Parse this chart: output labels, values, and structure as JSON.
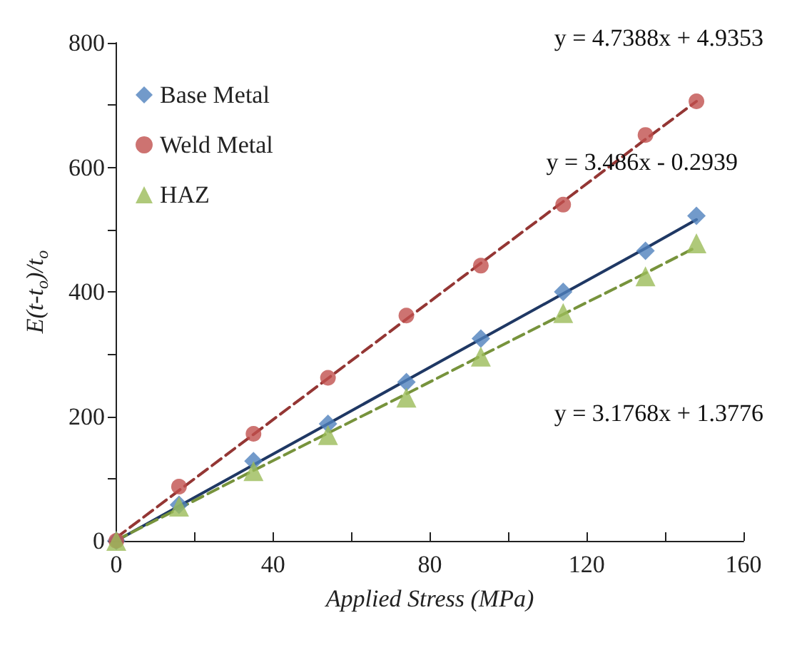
{
  "chart_data": {
    "type": "scatter",
    "xlabel": "Applied Stress (MPa)",
    "ylabel": "E(t-t$_{o}$)/t$_{o}$",
    "x": [
      0,
      16,
      35,
      54,
      74,
      93,
      114,
      135,
      148
    ],
    "series": [
      {
        "name": "Base Metal",
        "color": "#4f81bd",
        "marker": "diamond",
        "values": [
          0,
          58,
          128,
          188,
          255,
          325,
          400,
          466,
          522
        ]
      },
      {
        "name": "Weld Metal",
        "color": "#c0504d",
        "marker": "circle",
        "values": [
          0,
          87,
          172,
          262,
          362,
          442,
          540,
          652,
          706
        ]
      },
      {
        "name": "HAZ",
        "color": "#9bbb59",
        "marker": "triangle",
        "values": [
          0,
          55,
          112,
          170,
          230,
          296,
          366,
          425,
          478
        ]
      },
      {
        "type": "line",
        "color": "#943634",
        "line_style": "dashed",
        "marker": "none",
        "values": [
          5,
          81,
          171,
          261,
          356,
          446,
          545,
          645,
          706
        ]
      },
      {
        "type": "line",
        "color": "#1f3864",
        "line_style": "solid",
        "marker": "none",
        "values": [
          0,
          56,
          122,
          188,
          258,
          324,
          397,
          470,
          516
        ]
      },
      {
        "type": "line",
        "color": "#77933c",
        "line_style": "dashed",
        "marker": "none",
        "values": [
          1,
          52,
          113,
          173,
          236,
          297,
          364,
          430,
          472
        ]
      }
    ],
    "annotations": [
      "y = 4.7388x + 4.9353",
      "y = 3.486x - 0.2939",
      "y = 3.1768x + 1.3776"
    ],
    "xlim": [
      0,
      160
    ],
    "xticks": [
      0,
      {
        "value": 20,
        "label": null
      },
      40,
      {
        "value": 60,
        "label": null
      },
      80,
      {
        "value": 100,
        "label": null
      },
      120,
      {
        "value": 140,
        "label": null
      },
      160
    ],
    "ylim": [
      0,
      800
    ],
    "yticks": [
      0,
      {
        "value": 100,
        "label": null
      },
      200,
      {
        "value": 300,
        "label": null
      },
      400,
      {
        "value": 500,
        "label": null
      },
      600,
      {
        "value": 700,
        "label": null
      },
      800
    ],
    "grid": false,
    "legend": "top left"
  }
}
